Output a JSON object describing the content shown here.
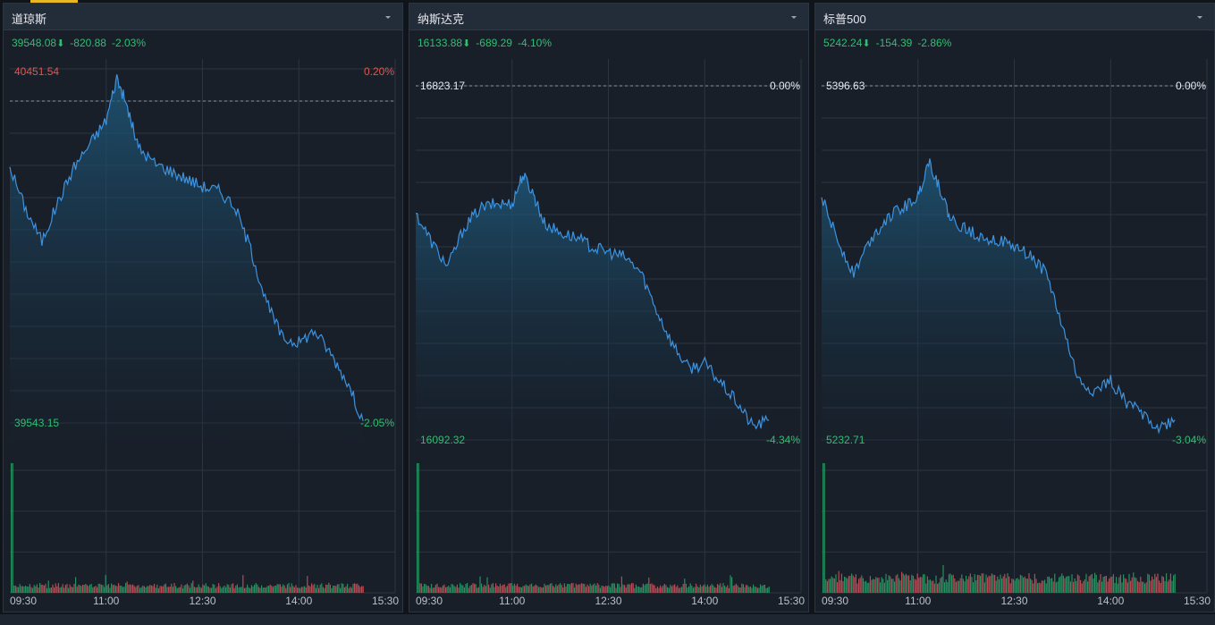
{
  "panels": [
    {
      "title": "道琼斯",
      "quote": {
        "price": "39548.08",
        "arrow": "⬇",
        "change": "-820.88",
        "pct": "-2.03%"
      },
      "top_label": {
        "value": "40451.54",
        "pct": "0.20%",
        "color": "#e0564f"
      },
      "bottom_label": {
        "value": "39543.15",
        "pct": "-2.05%",
        "color": "#2fbf71"
      },
      "ref_label": {
        "value": "",
        "pct": ""
      }
    },
    {
      "title": "纳斯达克",
      "quote": {
        "price": "16133.88",
        "arrow": "⬇",
        "change": "-689.29",
        "pct": "-4.10%"
      },
      "top_label": {
        "value": "",
        "pct": "",
        "color": "#e0564f"
      },
      "bottom_label": {
        "value": "16092.32",
        "pct": "-4.34%",
        "color": "#2fbf71"
      },
      "ref_label": {
        "value": "16823.17",
        "pct": "0.00%"
      }
    },
    {
      "title": "标普500",
      "quote": {
        "price": "5242.24",
        "arrow": "⬇",
        "change": "-154.39",
        "pct": "-2.86%"
      },
      "top_label": {
        "value": "",
        "pct": "",
        "color": "#e0564f"
      },
      "bottom_label": {
        "value": "5232.71",
        "pct": "-3.04%",
        "color": "#2fbf71"
      },
      "ref_label": {
        "value": "5396.63",
        "pct": "0.00%"
      }
    }
  ],
  "chart_data": [
    {
      "type": "line",
      "name": "道琼斯",
      "prev_close": 40368.96,
      "ylim": [
        39543.15,
        40451.54
      ],
      "xlim": [
        "09:30",
        "15:30"
      ],
      "x_ticks": [
        "09:30",
        "11:00",
        "12:30",
        "14:00",
        "15:30"
      ],
      "grid": true,
      "series": [
        {
          "x": [
            "09:30",
            "09:45",
            "10:00",
            "10:15",
            "10:30",
            "10:45",
            "11:00",
            "11:10",
            "11:20",
            "11:30",
            "11:45",
            "12:00",
            "12:15",
            "12:30",
            "12:45",
            "13:00",
            "13:15",
            "13:30",
            "13:45",
            "14:00",
            "14:15",
            "14:30",
            "14:45",
            "15:00"
          ],
          "values": [
            40200,
            40090,
            40010,
            40110,
            40200,
            40260,
            40320,
            40430,
            40350,
            40250,
            40210,
            40190,
            40170,
            40150,
            40140,
            40100,
            39990,
            39850,
            39760,
            39750,
            39780,
            39720,
            39650,
            39548
          ]
        }
      ]
    },
    {
      "type": "line",
      "name": "纳斯达克",
      "prev_close": 16823.17,
      "ylim": [
        16092.32,
        16823.17
      ],
      "xlim": [
        "09:30",
        "15:30"
      ],
      "x_ticks": [
        "09:30",
        "11:00",
        "12:30",
        "14:00",
        "15:30"
      ],
      "grid": true,
      "series": [
        {
          "x": [
            "09:30",
            "09:45",
            "10:00",
            "10:15",
            "10:30",
            "10:45",
            "11:00",
            "11:10",
            "11:20",
            "11:30",
            "11:45",
            "12:00",
            "12:15",
            "12:30",
            "12:45",
            "13:00",
            "13:15",
            "13:30",
            "13:45",
            "14:00",
            "14:15",
            "14:30",
            "14:45",
            "15:00"
          ],
          "values": [
            16560,
            16500,
            16450,
            16530,
            16570,
            16580,
            16580,
            16640,
            16600,
            16540,
            16520,
            16510,
            16490,
            16480,
            16470,
            16440,
            16360,
            16290,
            16240,
            16250,
            16210,
            16170,
            16120,
            16133
          ]
        }
      ]
    },
    {
      "type": "line",
      "name": "标普500",
      "prev_close": 5396.63,
      "ylim": [
        5232.71,
        5396.63
      ],
      "xlim": [
        "09:30",
        "15:30"
      ],
      "x_ticks": [
        "09:30",
        "11:00",
        "12:30",
        "14:00",
        "15:30"
      ],
      "grid": true,
      "series": [
        {
          "x": [
            "09:30",
            "09:45",
            "10:00",
            "10:15",
            "10:30",
            "10:45",
            "11:00",
            "11:10",
            "11:20",
            "11:30",
            "11:45",
            "12:00",
            "12:15",
            "12:30",
            "12:45",
            "13:00",
            "13:15",
            "13:30",
            "13:45",
            "14:00",
            "14:15",
            "14:30",
            "14:45",
            "15:00"
          ],
          "values": [
            5345,
            5325,
            5310,
            5325,
            5335,
            5340,
            5345,
            5362,
            5350,
            5335,
            5330,
            5327,
            5325,
            5322,
            5318,
            5310,
            5285,
            5260,
            5255,
            5260,
            5250,
            5245,
            5238,
            5242
          ]
        }
      ]
    }
  ]
}
